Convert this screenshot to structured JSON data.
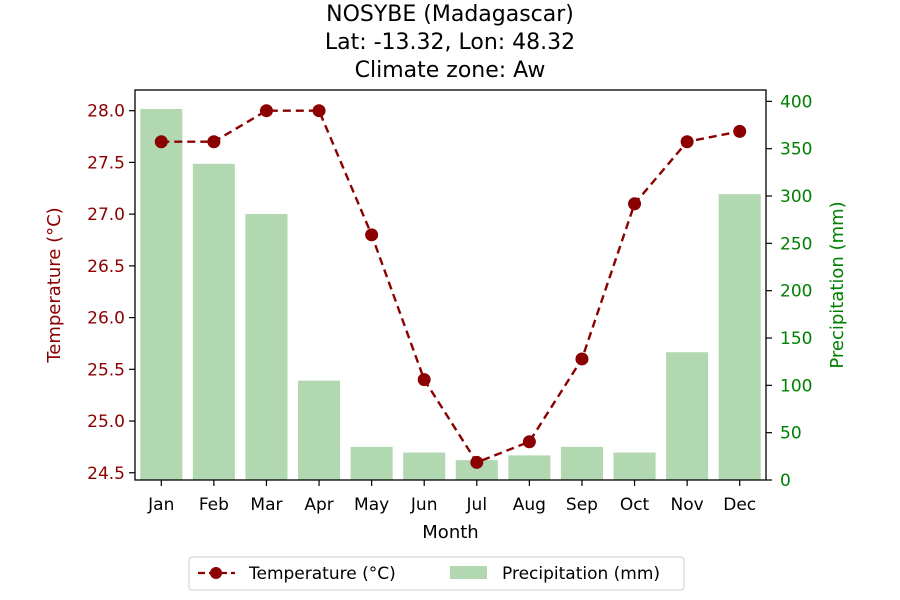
{
  "chart_data": {
    "type": "bar+line",
    "title_lines": [
      "NOSYBE (Madagascar)",
      "Lat: -13.32, Lon: 48.32",
      "Climate zone: Aw"
    ],
    "xlabel": "Month",
    "ylabel_left": "Temperature (°C)",
    "ylabel_right": "Precipitation (mm)",
    "categories": [
      "Jan",
      "Feb",
      "Mar",
      "Apr",
      "May",
      "Jun",
      "Jul",
      "Aug",
      "Sep",
      "Oct",
      "Nov",
      "Dec"
    ],
    "left_ticks": [
      "24.5",
      "25.0",
      "25.5",
      "26.0",
      "26.5",
      "27.0",
      "27.5",
      "28.0"
    ],
    "left_tick_values": [
      24.5,
      25.0,
      25.5,
      26.0,
      26.5,
      27.0,
      27.5,
      28.0
    ],
    "ylim_left": [
      24.43,
      28.2
    ],
    "right_ticks": [
      "0",
      "50",
      "100",
      "150",
      "200",
      "250",
      "300",
      "350",
      "400"
    ],
    "right_tick_values": [
      0,
      50,
      100,
      150,
      200,
      250,
      300,
      350,
      400
    ],
    "ylim_right": [
      0,
      412
    ],
    "series": [
      {
        "name": "Temperature (°C)",
        "kind": "line",
        "axis": "left",
        "color": "#8b0000",
        "values": [
          27.7,
          27.7,
          28.0,
          28.0,
          26.8,
          25.4,
          24.6,
          24.8,
          25.6,
          27.1,
          27.7,
          27.8
        ]
      },
      {
        "name": "Precipitation (mm)",
        "kind": "bar",
        "axis": "right",
        "color": "#b2d8b2",
        "values": [
          392,
          334,
          281,
          105,
          35,
          29,
          21,
          26,
          35,
          29,
          135,
          302
        ]
      }
    ],
    "left_axis_color": "#8b0000",
    "right_axis_color": "#008000",
    "legend_position": "bottom-center",
    "grid": false
  }
}
